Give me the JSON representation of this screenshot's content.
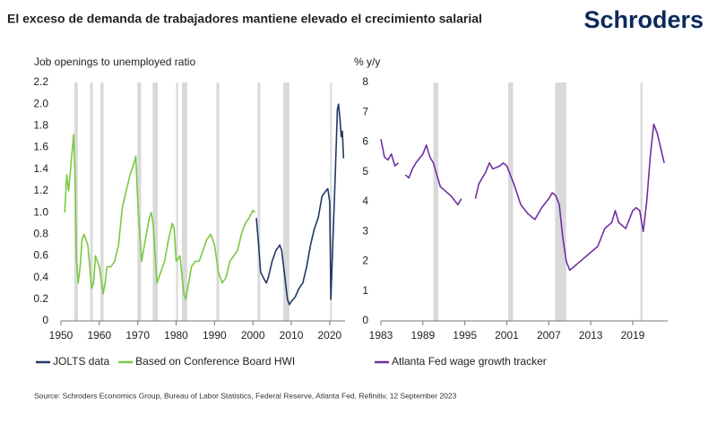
{
  "title": "El exceso de demanda de trabajadores mantiene elevado el crecimiento salarial",
  "logo": "Schroders",
  "source": "Source: Schroders Economics Group, Bureau of Labor Statistics, Federal Reserve, Atlanta Fed, Refinitiv, 12 September 2023",
  "chart_data": [
    {
      "type": "line",
      "y_label": "Job openings to unemployed ratio",
      "xlim": [
        1950,
        2024
      ],
      "xticks": [
        1950,
        1960,
        1970,
        1980,
        1990,
        2000,
        2010,
        2020
      ],
      "ylim": [
        0,
        2.2
      ],
      "yticks": [
        0,
        0.2,
        0.4,
        0.6,
        0.8,
        {
          "value": 1,
          "label": "1.0"
        },
        1.2,
        1.4,
        1.6,
        1.8,
        {
          "value": 2,
          "label": "2.0"
        },
        2.2
      ],
      "recession_color": "#d9d9d9",
      "recessions": [
        [
          1953.5,
          1954.4
        ],
        [
          1957.6,
          1958.3
        ],
        [
          1960.3,
          1961.1
        ],
        [
          1969.9,
          1970.9
        ],
        [
          1973.9,
          1975.2
        ],
        [
          1980.0,
          1980.5
        ],
        [
          1981.5,
          1982.9
        ],
        [
          1990.5,
          1991.2
        ],
        [
          2001.2,
          2001.9
        ],
        [
          2007.9,
          2009.5
        ],
        [
          2020.1,
          2020.4
        ]
      ],
      "series": [
        {
          "name": "JOLTS data",
          "color": "#1f3864",
          "x": [
            2000.9,
            2001.5,
            2002,
            2003,
            2003.5,
            2004,
            2005,
            2006,
            2007,
            2007.5,
            2008,
            2009,
            2009.5,
            2010,
            2011,
            2012,
            2013,
            2014,
            2015,
            2016,
            2017,
            2018,
            2019,
            2019.5,
            2020,
            2020.3,
            2020.6,
            2021,
            2021.5,
            2022,
            2022.3,
            2022.7,
            2023,
            2023.3,
            2023.6
          ],
          "values": [
            0.95,
            0.7,
            0.45,
            0.38,
            0.35,
            0.4,
            0.55,
            0.65,
            0.7,
            0.65,
            0.5,
            0.2,
            0.15,
            0.18,
            0.22,
            0.3,
            0.35,
            0.5,
            0.7,
            0.85,
            0.95,
            1.15,
            1.2,
            1.22,
            1.1,
            0.2,
            0.5,
            0.9,
            1.4,
            1.95,
            2.0,
            1.85,
            1.7,
            1.75,
            1.5
          ]
        },
        {
          "name": "Based on Conference Board HWI",
          "color": "#7ac943",
          "x": [
            1951,
            1951.5,
            1952,
            1952.5,
            1953,
            1953.3,
            1953.7,
            1954,
            1954.5,
            1955,
            1955.5,
            1956,
            1956.5,
            1957,
            1958,
            1958.5,
            1959,
            1959.5,
            1960,
            1961,
            1961.5,
            1962,
            1963,
            1964,
            1965,
            1966,
            1967,
            1968,
            1969,
            1969.5,
            1970,
            1971,
            1972,
            1973,
            1973.5,
            1974,
            1975,
            1976,
            1977,
            1978,
            1979,
            1979.5,
            1980,
            1981,
            1982,
            1982.5,
            1983,
            1984,
            1985,
            1986,
            1987,
            1988,
            1989,
            1990,
            1991,
            1992,
            1993,
            1994,
            1995,
            1996,
            1997,
            1998,
            1999,
            2000,
            2000.5
          ],
          "values": [
            1.0,
            1.35,
            1.2,
            1.4,
            1.6,
            1.72,
            1.3,
            0.6,
            0.35,
            0.5,
            0.75,
            0.8,
            0.75,
            0.7,
            0.3,
            0.35,
            0.6,
            0.55,
            0.5,
            0.25,
            0.35,
            0.5,
            0.5,
            0.55,
            0.7,
            1.05,
            1.2,
            1.35,
            1.45,
            1.52,
            1.1,
            0.55,
            0.75,
            0.95,
            1.0,
            0.9,
            0.35,
            0.45,
            0.55,
            0.75,
            0.9,
            0.85,
            0.55,
            0.6,
            0.25,
            0.2,
            0.3,
            0.5,
            0.55,
            0.55,
            0.65,
            0.75,
            0.8,
            0.7,
            0.45,
            0.35,
            0.4,
            0.55,
            0.6,
            0.65,
            0.8,
            0.9,
            0.95,
            1.02,
            1.0
          ]
        }
      ]
    },
    {
      "type": "line",
      "y_label": "% y/y",
      "xlim": [
        1983,
        2024
      ],
      "xticks": [
        1983,
        1989,
        1995,
        2001,
        2007,
        2013,
        2019
      ],
      "ylim": [
        0,
        8
      ],
      "yticks": [
        0,
        1,
        2,
        3,
        4,
        5,
        6,
        7,
        8
      ],
      "recession_color": "#d9d9d9",
      "recessions": [
        [
          1990.5,
          1991.2
        ],
        [
          2001.2,
          2001.9
        ],
        [
          2007.9,
          2009.5
        ],
        [
          2020.1,
          2020.4
        ]
      ],
      "series": [
        {
          "name": "Atlanta Fed wage growth tracker",
          "color": "#7030a0",
          "x": [
            1983,
            1983.5,
            1984,
            1984.5,
            1985,
            1985.5,
            1986,
            1986.5,
            1987,
            1987.5,
            1988,
            1989,
            1989.5,
            1990,
            1990.5,
            1991,
            1991.5,
            1992,
            1993,
            1994,
            1994.5,
            1995,
            1996.5,
            1997,
            1998,
            1998.5,
            1999,
            2000,
            2000.5,
            2001,
            2002,
            2003,
            2004,
            2005,
            2006,
            2007,
            2007.5,
            2008,
            2008.5,
            2009,
            2009.5,
            2010,
            2011,
            2012,
            2013,
            2014,
            2015,
            2016,
            2016.5,
            2017,
            2018,
            2019,
            2019.5,
            2020,
            2020.5,
            2021,
            2021.5,
            2022,
            2022.5,
            2023,
            2023.5
          ],
          "values": [
            6.1,
            5.5,
            5.4,
            5.6,
            5.2,
            5.3,
            null,
            4.9,
            4.8,
            5.1,
            5.3,
            5.6,
            5.9,
            5.5,
            5.3,
            4.9,
            4.5,
            4.4,
            4.2,
            3.9,
            4.1,
            null,
            4.1,
            4.6,
            5.0,
            5.3,
            5.1,
            5.2,
            5.3,
            5.2,
            4.6,
            3.9,
            3.6,
            3.4,
            3.8,
            4.1,
            4.3,
            4.2,
            3.9,
            2.8,
            2.0,
            1.7,
            1.9,
            2.1,
            2.3,
            2.5,
            3.1,
            3.3,
            3.7,
            3.3,
            3.1,
            3.7,
            3.8,
            3.7,
            3.0,
            4.0,
            5.5,
            6.6,
            6.3,
            5.8,
            5.3
          ]
        }
      ]
    }
  ]
}
